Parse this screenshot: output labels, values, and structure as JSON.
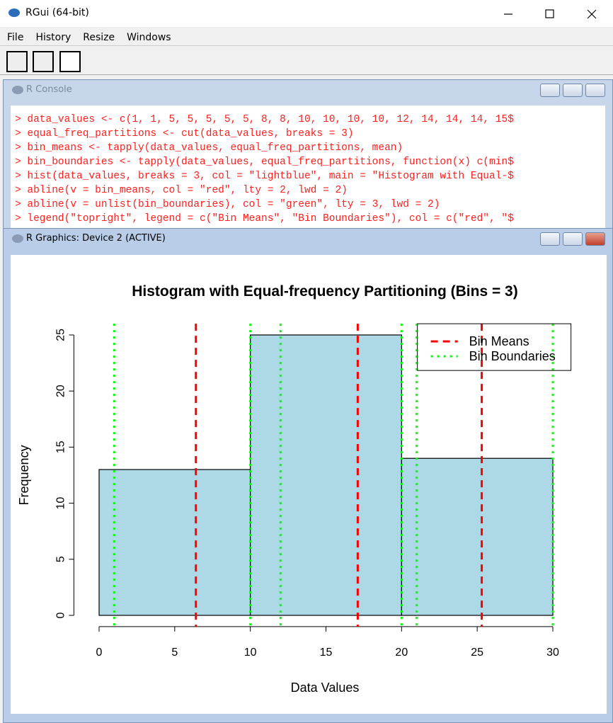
{
  "app": {
    "title": "RGui (64-bit)",
    "menu": [
      "File",
      "History",
      "Resize",
      "Windows"
    ]
  },
  "console": {
    "title": "R Console",
    "lines": [
      "> data_values <- c(1, 1, 5, 5, 5, 5, 5, 8, 8, 10, 10, 10, 10, 12, 14, 14, 14, 15$",
      "> equal_freq_partitions <- cut(data_values, breaks = 3)",
      "> bin_means <- tapply(data_values, equal_freq_partitions, mean)",
      "> bin_boundaries <- tapply(data_values, equal_freq_partitions, function(x) c(min$",
      "> hist(data_values, breaks = 3, col = \"lightblue\", main = \"Histogram with Equal-$",
      "> abline(v = bin_means, col = \"red\", lty = 2, lwd = 2)",
      "> abline(v = unlist(bin_boundaries), col = \"green\", lty = 3, lwd = 2)",
      "> legend(\"topright\", legend = c(\"Bin Means\", \"Bin Boundaries\"), col = c(\"red\", \"$"
    ]
  },
  "graphics": {
    "title": "R Graphics: Device 2 (ACTIVE)"
  },
  "chart_data": {
    "type": "histogram",
    "title": "Histogram with Equal-frequency Partitioning (Bins = 3)",
    "x_label": "Data Values",
    "y_label": "Frequency",
    "bins": [
      0,
      10,
      20,
      30
    ],
    "values": [
      13,
      25,
      14
    ],
    "color": "#add8e6",
    "xlim": [
      0,
      30
    ],
    "xticks": [
      0,
      5,
      10,
      15,
      20,
      25,
      30
    ],
    "ylim": [
      0,
      25
    ],
    "yticks": [
      0,
      5,
      10,
      15,
      20,
      25
    ],
    "series": [
      {
        "name": "Bin Means",
        "color": "#ff0000",
        "style": "dashed",
        "x": [
          6.4,
          17.1,
          25.3
        ]
      },
      {
        "name": "Bin Boundaries",
        "color": "#00ff00",
        "style": "dotted",
        "x": [
          1,
          10,
          12,
          20,
          21,
          30
        ]
      }
    ],
    "legend": "topright"
  }
}
